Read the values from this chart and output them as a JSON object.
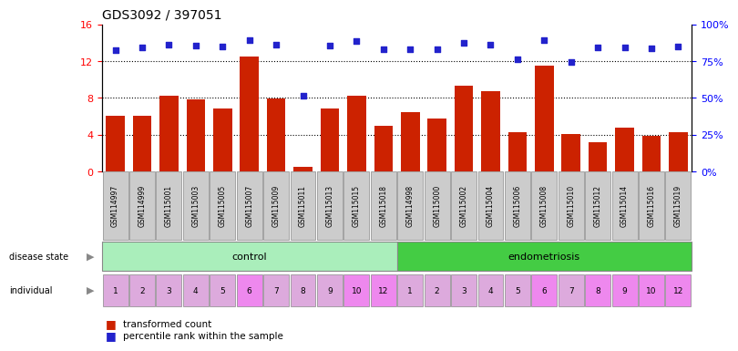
{
  "title": "GDS3092 / 397051",
  "samples": [
    "GSM114997",
    "GSM114999",
    "GSM115001",
    "GSM115003",
    "GSM115005",
    "GSM115007",
    "GSM115009",
    "GSM115011",
    "GSM115013",
    "GSM115015",
    "GSM115018",
    "GSM114998",
    "GSM115000",
    "GSM115002",
    "GSM115004",
    "GSM115006",
    "GSM115008",
    "GSM115010",
    "GSM115012",
    "GSM115014",
    "GSM115016",
    "GSM115019"
  ],
  "transformed_count": [
    6.1,
    6.1,
    8.2,
    7.8,
    6.8,
    12.5,
    7.9,
    0.5,
    6.8,
    8.2,
    5.0,
    6.5,
    5.8,
    9.3,
    8.7,
    4.3,
    11.5,
    4.1,
    3.2,
    4.8,
    3.9,
    4.3
  ],
  "percentile_rank": [
    13.2,
    13.5,
    13.8,
    13.7,
    13.6,
    14.3,
    13.8,
    8.2,
    13.7,
    14.2,
    13.3,
    13.3,
    13.3,
    14.0,
    13.8,
    12.2,
    14.3,
    11.9,
    13.5,
    13.5,
    13.4,
    13.6
  ],
  "individual": [
    "1",
    "2",
    "3",
    "4",
    "5",
    "6",
    "7",
    "8",
    "9",
    "10",
    "12",
    "1",
    "2",
    "3",
    "4",
    "5",
    "6",
    "7",
    "8",
    "9",
    "10",
    "12"
  ],
  "bar_color": "#cc2200",
  "dot_color": "#2222cc",
  "control_color": "#aaeebb",
  "endometriosis_color": "#44cc44",
  "ylim_left": [
    0,
    16
  ],
  "ylim_right": [
    0,
    100
  ],
  "yticks_left": [
    0,
    4,
    8,
    12,
    16
  ],
  "yticks_right": [
    0,
    25,
    50,
    75,
    100
  ],
  "grid_values": [
    4,
    8,
    12
  ],
  "background_color": "#ffffff",
  "xlabel_bg": "#cccccc",
  "n_control": 11,
  "n_endo": 11,
  "ind_colors": [
    "#ddaadd",
    "#ddaadd",
    "#ddaadd",
    "#ddaadd",
    "#ddaadd",
    "#ee88ee",
    "#ddaadd",
    "#ddaadd",
    "#ddaadd",
    "#ee88ee",
    "#ee88ee",
    "#ddaadd",
    "#ddaadd",
    "#ddaadd",
    "#ddaadd",
    "#ddaadd",
    "#ee88ee",
    "#ddaadd",
    "#ee88ee",
    "#ee88ee",
    "#ee88ee",
    "#ee88ee"
  ]
}
